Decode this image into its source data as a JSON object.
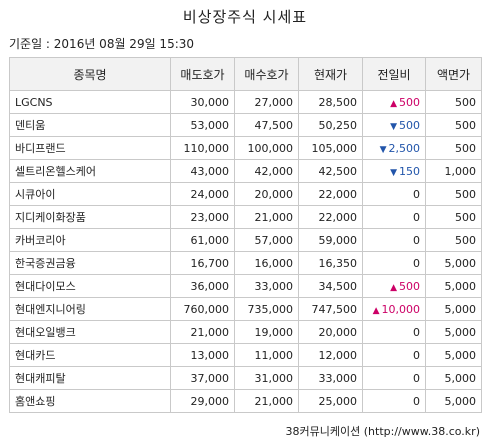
{
  "title": "비상장주식 시세표",
  "base_date": "기준일 : 2016년 08월 29일 15:30",
  "columns": [
    "종목명",
    "매도호가",
    "매수호가",
    "현재가",
    "전일비",
    "액면가"
  ],
  "rows": [
    {
      "name": "LGCNS",
      "ask": "30,000",
      "bid": "27,000",
      "price": "28,500",
      "change": "500",
      "direction": "up",
      "par": "500"
    },
    {
      "name": "덴티움",
      "ask": "53,000",
      "bid": "47,500",
      "price": "50,250",
      "change": "500",
      "direction": "down",
      "par": "500"
    },
    {
      "name": "바디프랜드",
      "ask": "110,000",
      "bid": "100,000",
      "price": "105,000",
      "change": "2,500",
      "direction": "down",
      "par": "500"
    },
    {
      "name": "셀트리온헬스케어",
      "ask": "43,000",
      "bid": "42,000",
      "price": "42,500",
      "change": "150",
      "direction": "down",
      "par": "1,000"
    },
    {
      "name": "시큐아이",
      "ask": "24,000",
      "bid": "20,000",
      "price": "22,000",
      "change": "0",
      "direction": "none",
      "par": "500"
    },
    {
      "name": "지디케이화장품",
      "ask": "23,000",
      "bid": "21,000",
      "price": "22,000",
      "change": "0",
      "direction": "none",
      "par": "500"
    },
    {
      "name": "카버코리아",
      "ask": "61,000",
      "bid": "57,000",
      "price": "59,000",
      "change": "0",
      "direction": "none",
      "par": "500"
    },
    {
      "name": "한국증권금융",
      "ask": "16,700",
      "bid": "16,000",
      "price": "16,350",
      "change": "0",
      "direction": "none",
      "par": "5,000"
    },
    {
      "name": "현대다이모스",
      "ask": "36,000",
      "bid": "33,000",
      "price": "34,500",
      "change": "500",
      "direction": "up",
      "par": "5,000"
    },
    {
      "name": "현대엔지니어링",
      "ask": "760,000",
      "bid": "735,000",
      "price": "747,500",
      "change": "10,000",
      "direction": "up",
      "par": "5,000"
    },
    {
      "name": "현대오일뱅크",
      "ask": "21,000",
      "bid": "19,000",
      "price": "20,000",
      "change": "0",
      "direction": "none",
      "par": "5,000"
    },
    {
      "name": "현대카드",
      "ask": "13,000",
      "bid": "11,000",
      "price": "12,000",
      "change": "0",
      "direction": "none",
      "par": "5,000"
    },
    {
      "name": "현대캐피탈",
      "ask": "37,000",
      "bid": "31,000",
      "price": "33,000",
      "change": "0",
      "direction": "none",
      "par": "5,000"
    },
    {
      "name": "홈앤쇼핑",
      "ask": "29,000",
      "bid": "21,000",
      "price": "25,000",
      "change": "0",
      "direction": "none",
      "par": "5,000"
    }
  ],
  "up_symbol": "▲",
  "down_symbol": "▼",
  "colors": {
    "up": "#cc0066",
    "down": "#2255aa",
    "header_bg": "#f2f2f2",
    "border": "#c9c9c9"
  },
  "source": "38커뮤니케이션 (http://www.38.co.kr)"
}
